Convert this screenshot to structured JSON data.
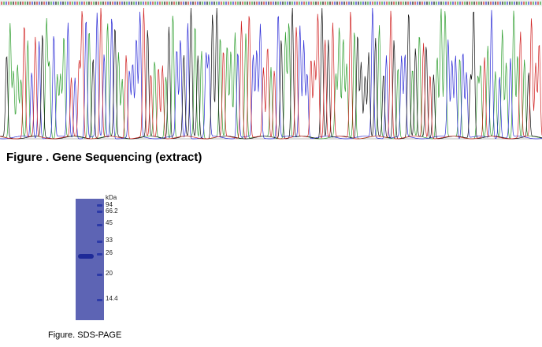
{
  "sequencing_figure": {
    "caption": "Figure . Gene Sequencing (extract)",
    "base_colors": {
      "A": "#2e9e2e",
      "C": "#2b2bd6",
      "G": "#111111",
      "T": "#d02020"
    }
  },
  "sds_page_figure": {
    "caption": "Figure. SDS-PAGE",
    "unit": "kDa",
    "markers": [
      "94",
      "66.2",
      "45",
      "33",
      "26",
      "20",
      "14.4"
    ],
    "lane_color": "#5d64b4",
    "band_color": "#1e2a98"
  }
}
